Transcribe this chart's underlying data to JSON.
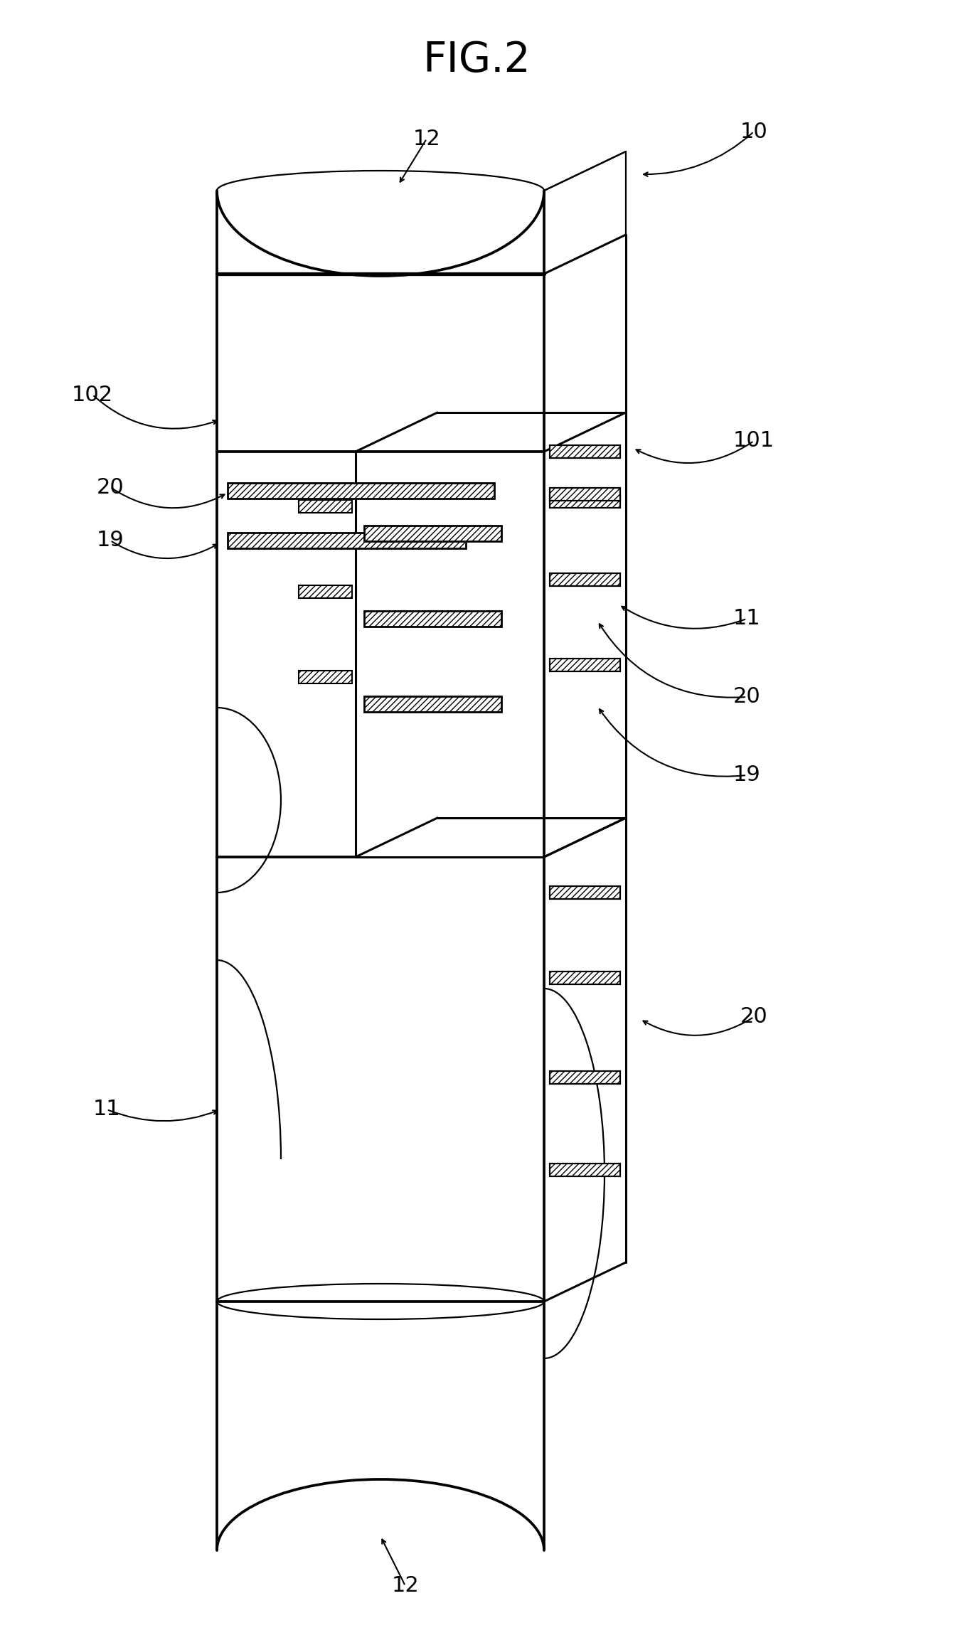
{
  "title": "FIG.2",
  "title_fontsize": 42,
  "fig_width": 13.4,
  "fig_height": 23.13,
  "bg_color": "#ffffff",
  "line_color": "#000000",
  "label_fontsize": 22,
  "lw_main": 2.2,
  "lw_thin": 1.6
}
